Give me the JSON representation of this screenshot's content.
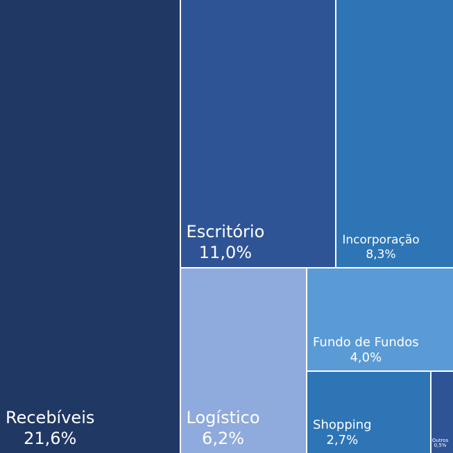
{
  "chart_data": {
    "type": "treemap",
    "categories": [
      "Recebíveis",
      "Escritório",
      "Incorporação",
      "Logístico",
      "Fundo de Fundos",
      "Shopping",
      "Outros"
    ],
    "values": [
      21.6,
      11.0,
      8.3,
      6.2,
      4.0,
      2.7,
      0.5
    ],
    "value_labels": [
      "21,6%",
      "11,0%",
      "8,3%",
      "6,2%",
      "4,0%",
      "2,7%",
      "0,5%"
    ],
    "colors": [
      "#203864",
      "#2f5496",
      "#2e75b6",
      "#8faadc",
      "#5b9bd5",
      "#2e75b6",
      "#2f5496"
    ]
  }
}
